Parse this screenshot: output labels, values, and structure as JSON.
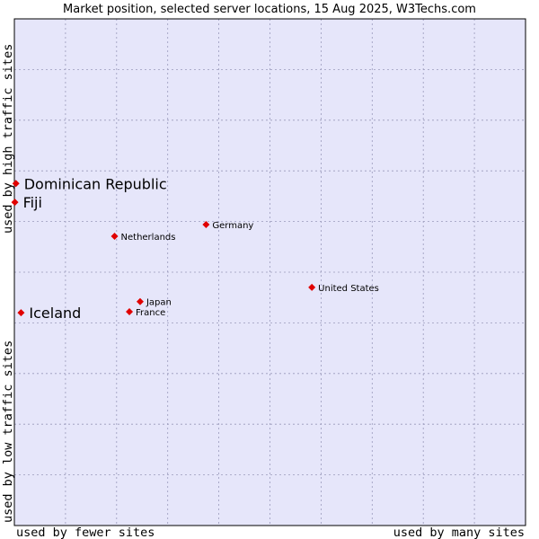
{
  "chart_data": {
    "type": "scatter",
    "title": "Market position, selected server locations, 15 Aug 2025, W3Techs.com",
    "xlabel_low": "used by fewer sites",
    "xlabel_high": "used by many sites",
    "ylabel_low": "used by low traffic sites",
    "ylabel_high": "used by high traffic sites",
    "xlim": [
      0,
      100
    ],
    "ylim": [
      0,
      100
    ],
    "grid": true,
    "colors": {
      "plot_bg": "#e6e6fa",
      "grid": "#9a9abb",
      "point": "#e00000"
    },
    "points": [
      {
        "name": "Dominican Republic",
        "x": 0.3,
        "y": 67.5,
        "emphasis": true
      },
      {
        "name": "Fiji",
        "x": 0.1,
        "y": 63.8,
        "emphasis": true
      },
      {
        "name": "Germany",
        "x": 37.5,
        "y": 59.4,
        "emphasis": false
      },
      {
        "name": "Netherlands",
        "x": 19.6,
        "y": 57.1,
        "emphasis": false
      },
      {
        "name": "United States",
        "x": 58.2,
        "y": 47.0,
        "emphasis": false
      },
      {
        "name": "Japan",
        "x": 24.6,
        "y": 44.2,
        "emphasis": false
      },
      {
        "name": "France",
        "x": 22.5,
        "y": 42.2,
        "emphasis": false
      },
      {
        "name": "Iceland",
        "x": 1.3,
        "y": 42.0,
        "emphasis": true
      }
    ]
  }
}
